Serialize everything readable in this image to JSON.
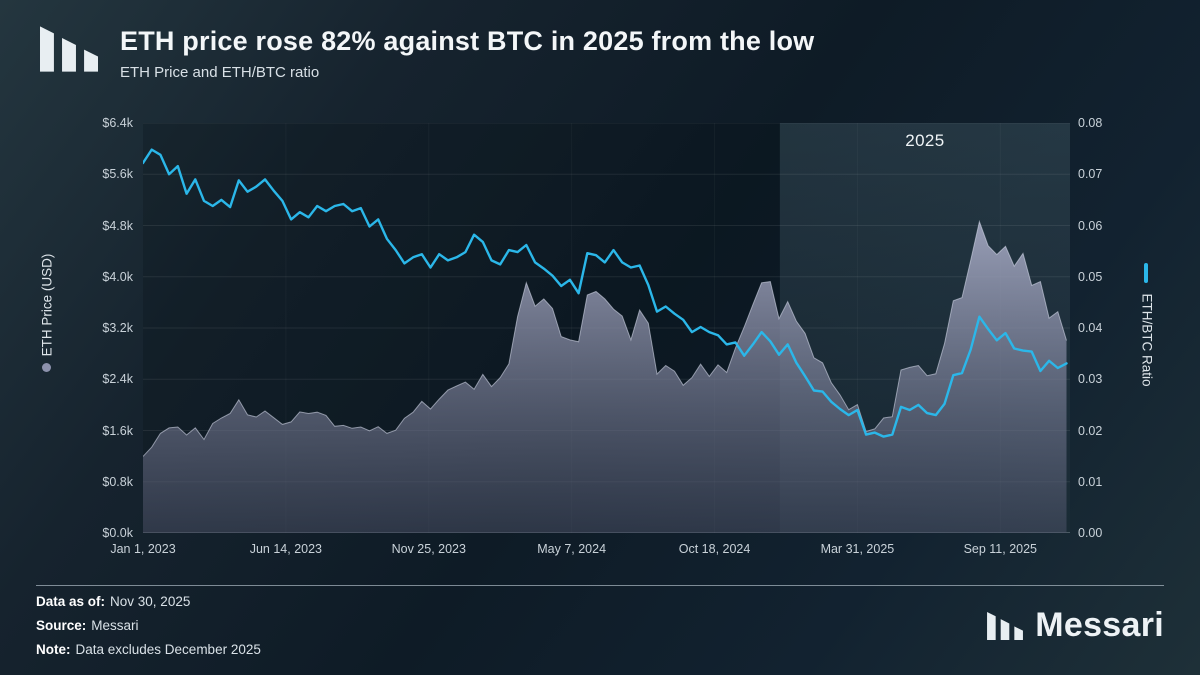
{
  "header": {
    "title": "ETH price rose 82% against BTC in 2025 from the low",
    "subtitle": "ETH Price and ETH/BTC ratio"
  },
  "footer": {
    "data_as_of_label": "Data as of:",
    "data_as_of_value": "Nov 30, 2025",
    "source_label": "Source:",
    "source_value": "Messari",
    "note_label": "Note:",
    "note_value": "Data excludes December 2025",
    "brand": "Messari"
  },
  "chart_data": {
    "type": "line",
    "title": "ETH price rose 82% against BTC in 2025 from the low",
    "subtitle": "ETH Price and ETH/BTC ratio",
    "x_type": "days since Jan 1, 2023",
    "x_range": [
      0,
      1064
    ],
    "x_ticks": [
      {
        "day": 0,
        "label": "Jan 1, 2023"
      },
      {
        "day": 164,
        "label": "Jun 14, 2023"
      },
      {
        "day": 328,
        "label": "Nov 25, 2023"
      },
      {
        "day": 492,
        "label": "May 7, 2024"
      },
      {
        "day": 656,
        "label": "Oct 18, 2024"
      },
      {
        "day": 820,
        "label": "Mar 31, 2025"
      },
      {
        "day": 984,
        "label": "Sep 11, 2025"
      }
    ],
    "left_axis": {
      "label": "ETH Price (USD)",
      "min": 0,
      "max": 6400,
      "ticks_top_to_bottom": [
        "$6.4k",
        "$5.6k",
        "$4.8k",
        "$4.0k",
        "$3.2k",
        "$2.4k",
        "$1.6k",
        "$0.8k",
        "$0.0k"
      ]
    },
    "right_axis": {
      "label": "ETH/BTC Ratio",
      "min": 0,
      "max": 0.08,
      "ticks_top_to_bottom": [
        "0.08",
        "0.07",
        "0.06",
        "0.05",
        "0.04",
        "0.03",
        "0.02",
        "0.01",
        "0.00"
      ]
    },
    "highlight": {
      "label": "2025",
      "start_day": 731,
      "end_day": 1064,
      "color": "#8fb8c9"
    },
    "x_days": [
      0,
      10,
      20,
      30,
      40,
      50,
      60,
      70,
      80,
      90,
      100,
      110,
      120,
      130,
      140,
      150,
      160,
      170,
      180,
      190,
      200,
      210,
      220,
      230,
      240,
      250,
      260,
      270,
      280,
      290,
      300,
      310,
      320,
      330,
      340,
      350,
      360,
      370,
      380,
      390,
      400,
      410,
      420,
      430,
      440,
      450,
      460,
      470,
      480,
      490,
      500,
      510,
      520,
      530,
      540,
      550,
      560,
      570,
      580,
      590,
      600,
      610,
      620,
      630,
      640,
      650,
      660,
      670,
      680,
      690,
      700,
      710,
      720,
      730,
      740,
      750,
      760,
      770,
      780,
      790,
      800,
      810,
      820,
      830,
      840,
      850,
      860,
      870,
      880,
      890,
      900,
      910,
      920,
      930,
      940,
      950,
      960,
      970,
      980,
      990,
      1000,
      1010,
      1020,
      1030,
      1040,
      1050,
      1060
    ],
    "series": [
      {
        "name": "ETH Price (USD)",
        "type": "area",
        "axis": "left",
        "color": "#8f93ae",
        "values": [
          1195,
          1340,
          1555,
          1640,
          1655,
          1530,
          1640,
          1460,
          1710,
          1795,
          1865,
          2080,
          1845,
          1810,
          1905,
          1800,
          1695,
          1735,
          1890,
          1865,
          1885,
          1835,
          1665,
          1680,
          1635,
          1655,
          1595,
          1660,
          1555,
          1605,
          1790,
          1885,
          2055,
          1935,
          2090,
          2230,
          2295,
          2355,
          2245,
          2475,
          2285,
          2425,
          2640,
          3380,
          3905,
          3540,
          3655,
          3505,
          3065,
          3015,
          2985,
          3715,
          3770,
          3655,
          3495,
          3385,
          3015,
          3480,
          3275,
          2480,
          2615,
          2525,
          2305,
          2425,
          2635,
          2445,
          2625,
          2505,
          2885,
          3215,
          3565,
          3905,
          3925,
          3345,
          3610,
          3305,
          3115,
          2735,
          2655,
          2345,
          2155,
          1925,
          2005,
          1585,
          1625,
          1795,
          1815,
          2545,
          2585,
          2615,
          2455,
          2485,
          2955,
          3625,
          3675,
          4255,
          4860,
          4485,
          4345,
          4475,
          4165,
          4365,
          3865,
          3925,
          3355,
          3455,
          3005
        ]
      },
      {
        "name": "ETH/BTC Ratio",
        "type": "line",
        "axis": "right",
        "color": "#2bb7e9",
        "values": [
          0.0722,
          0.0748,
          0.0738,
          0.07,
          0.0716,
          0.0662,
          0.069,
          0.0648,
          0.0638,
          0.065,
          0.0636,
          0.0688,
          0.0666,
          0.0676,
          0.069,
          0.0668,
          0.0648,
          0.0612,
          0.0626,
          0.0616,
          0.0638,
          0.0628,
          0.0638,
          0.0642,
          0.0628,
          0.0634,
          0.0598,
          0.0612,
          0.0574,
          0.0552,
          0.0526,
          0.0538,
          0.0544,
          0.0518,
          0.0544,
          0.0532,
          0.0538,
          0.0548,
          0.0582,
          0.0568,
          0.0532,
          0.0524,
          0.0552,
          0.0548,
          0.0562,
          0.0528,
          0.0516,
          0.0502,
          0.0482,
          0.0494,
          0.0468,
          0.0546,
          0.0542,
          0.0528,
          0.0552,
          0.0528,
          0.0518,
          0.0522,
          0.0484,
          0.0432,
          0.0442,
          0.0428,
          0.0416,
          0.0392,
          0.0402,
          0.0392,
          0.0386,
          0.0368,
          0.0372,
          0.0346,
          0.0368,
          0.0392,
          0.0374,
          0.0348,
          0.0368,
          0.0332,
          0.0306,
          0.0278,
          0.0276,
          0.0256,
          0.0242,
          0.023,
          0.024,
          0.0192,
          0.0196,
          0.0188,
          0.0192,
          0.0246,
          0.024,
          0.025,
          0.0234,
          0.023,
          0.0252,
          0.0308,
          0.0312,
          0.0358,
          0.0422,
          0.0398,
          0.0376,
          0.039,
          0.036,
          0.0356,
          0.0354,
          0.0316,
          0.0336,
          0.0322,
          0.0331
        ]
      }
    ]
  }
}
